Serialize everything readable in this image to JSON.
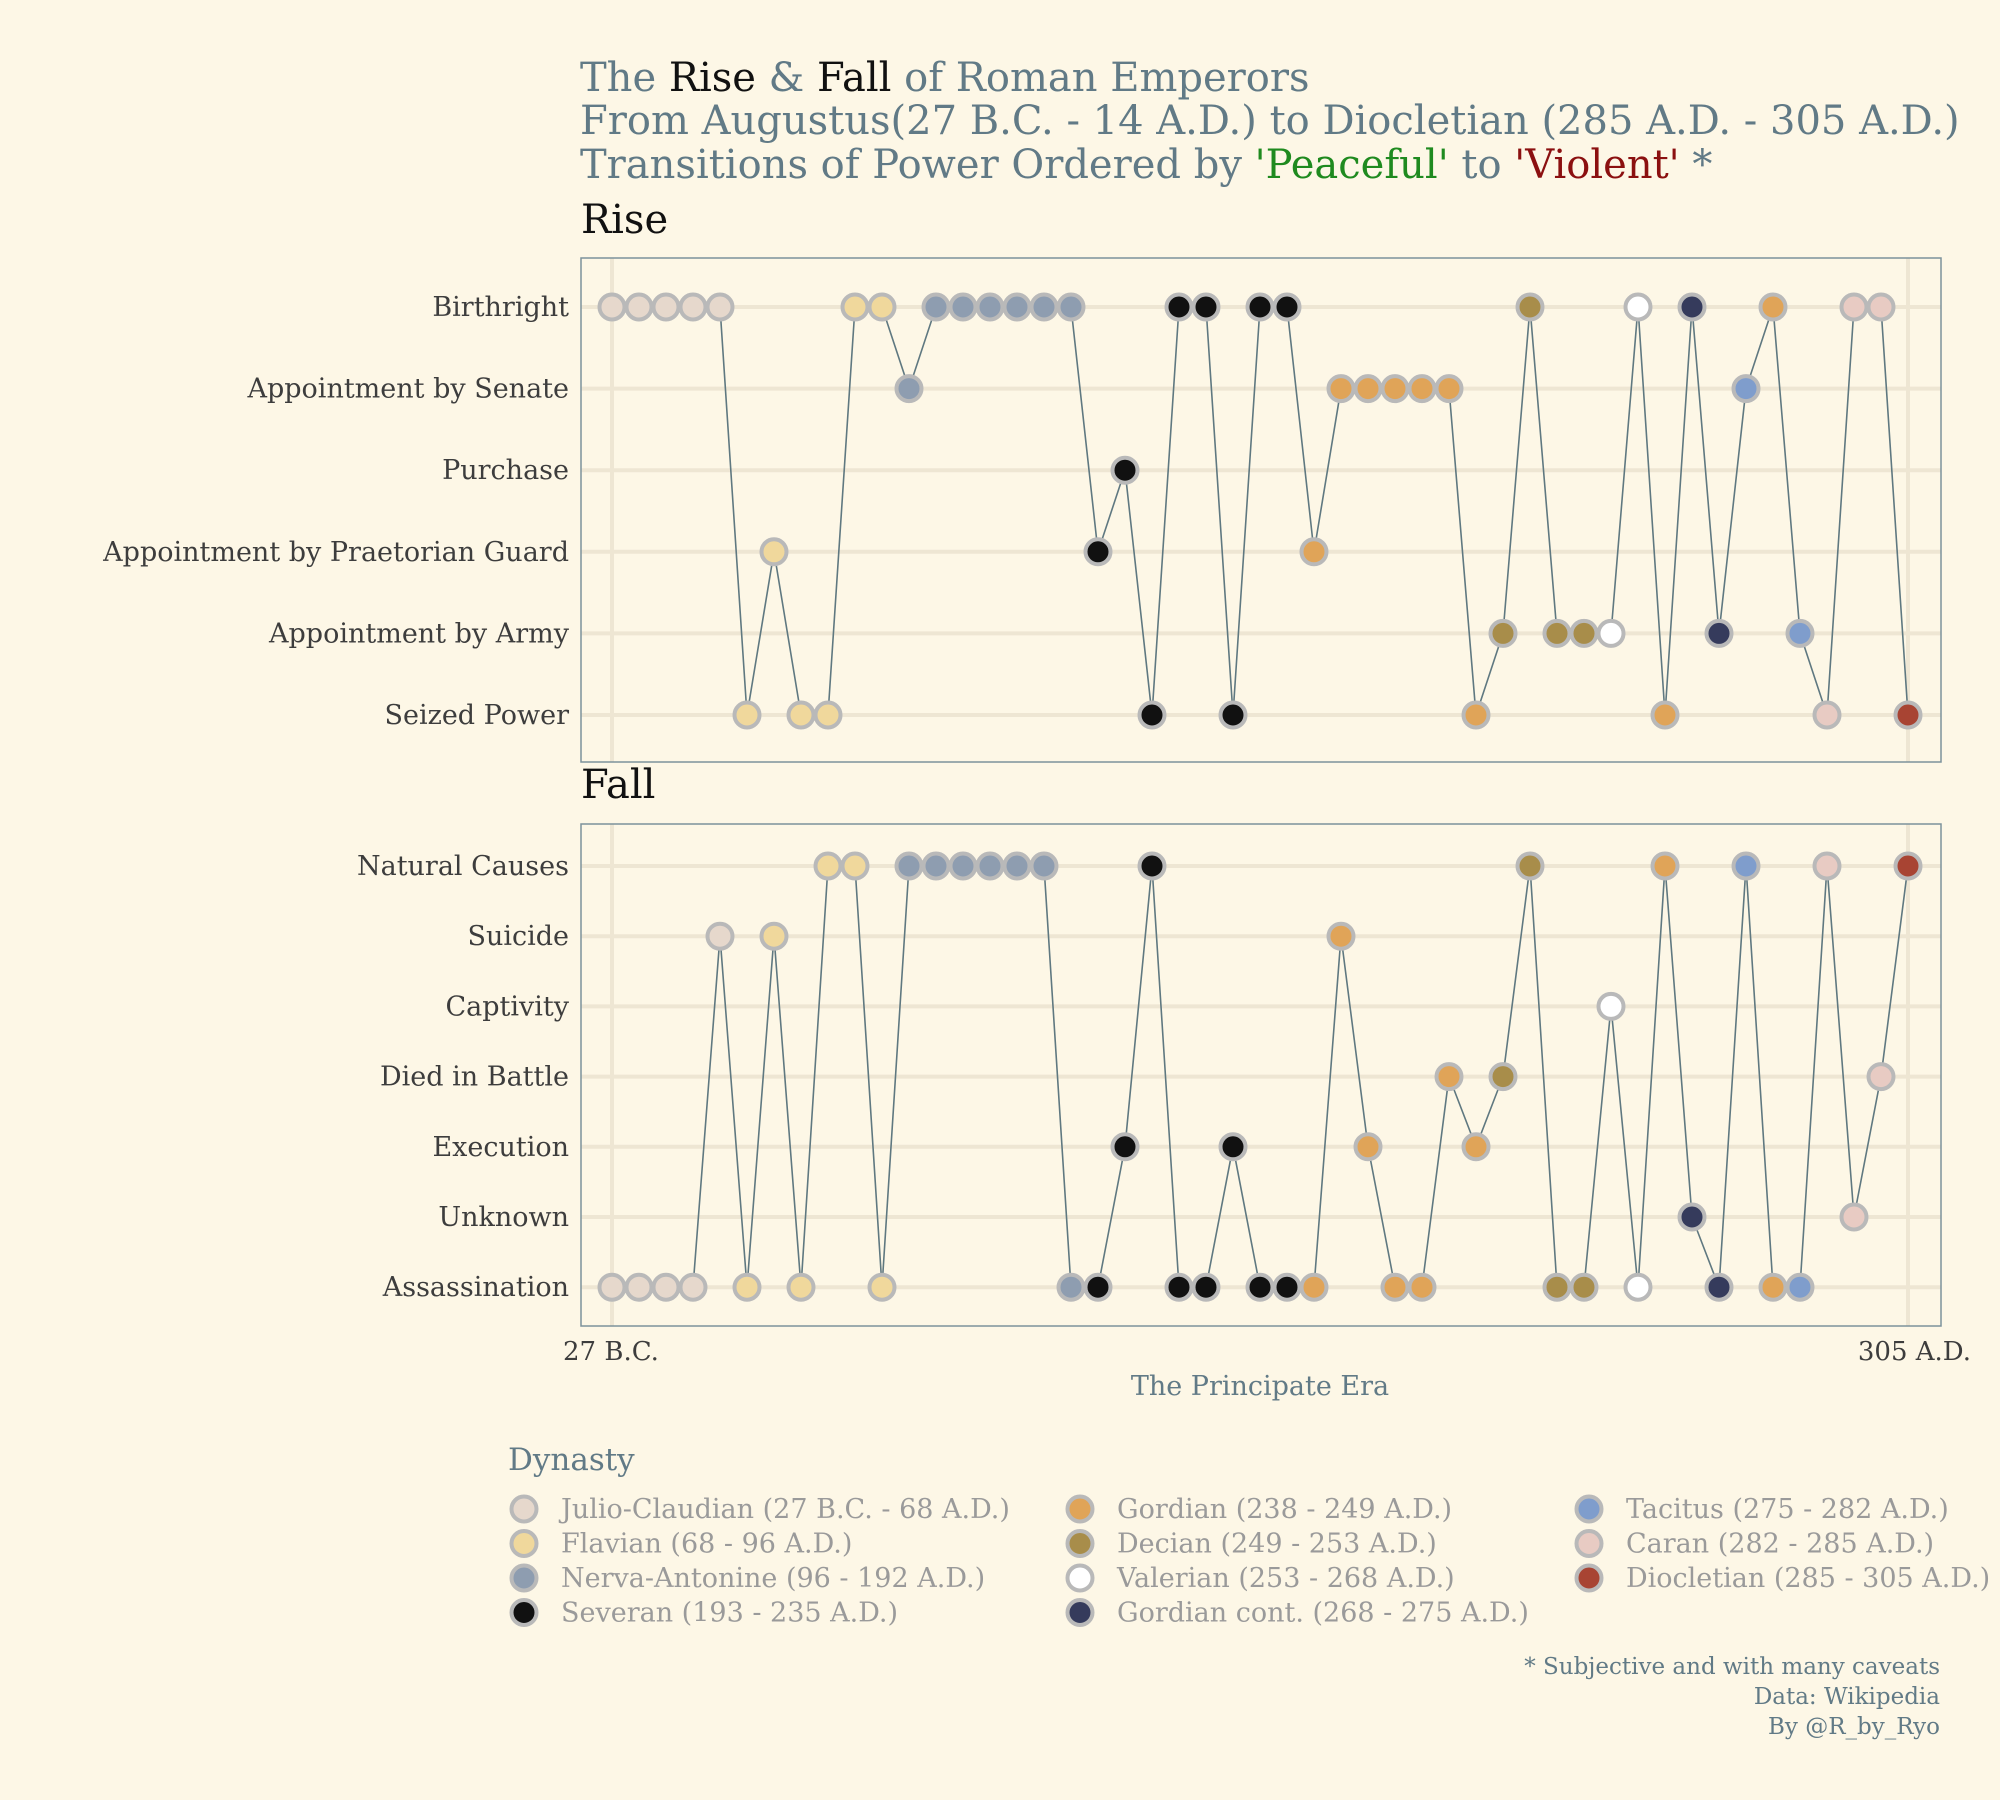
{
  "chart_data": {
    "type": "line",
    "title": {
      "line1": [
        {
          "text": "The ",
          "emph": false
        },
        {
          "text": "Rise",
          "emph": true
        },
        {
          "text": " & ",
          "emph": false
        },
        {
          "text": "Fall",
          "emph": true
        },
        {
          "text": " of Roman Emperors",
          "emph": false
        }
      ],
      "line2": "From Augustus(27 B.C. - 14 A.D.) to Diocletian (285 A.D. - 305 A.D.)",
      "line3": [
        {
          "text": "Transitions of Power Ordered by ",
          "color": "#617a86"
        },
        {
          "text": "'Peaceful'",
          "color": "#1f8a1f"
        },
        {
          "text": " to ",
          "color": "#617a86"
        },
        {
          "text": "'Violent'",
          "color": "#8b1010"
        },
        {
          "text": " *",
          "color": "#617a86"
        }
      ]
    },
    "xlabel": "The Principate Era",
    "x_ticks": [
      "27 B.C.",
      "305 A.D."
    ],
    "x_range": [
      1,
      49
    ],
    "palette": {
      "line": "#5f7880",
      "point_stroke": "#b9b9b9",
      "grid": "#eee6d3",
      "panel_border": "#7d929b"
    },
    "dynasties": [
      {
        "name": "Julio-Claudian (27 B.C. - 68 A.D.)",
        "color": "#e6d8cc"
      },
      {
        "name": "Flavian (68 - 96 A.D.)",
        "color": "#f0d89c"
      },
      {
        "name": "Nerva-Antonine (96 - 192 A.D.)",
        "color": "#8e9db0"
      },
      {
        "name": "Severan (193 - 235 A.D.)",
        "color": "#111111"
      },
      {
        "name": "Gordian (238 - 249 A.D.)",
        "color": "#e0a458"
      },
      {
        "name": "Decian (249 - 253 A.D.)",
        "color": "#a88d4a"
      },
      {
        "name": "Valerian (253 - 268 A.D.)",
        "color": "#ffffff"
      },
      {
        "name": "Gordian cont. (268 - 275 A.D.)",
        "color": "#353b5c"
      },
      {
        "name": "Tacitus (275 - 282 A.D.)",
        "color": "#7f9dcc"
      },
      {
        "name": "Caran (282 - 285 A.D.)",
        "color": "#e8cbc3"
      },
      {
        "name": "Diocletian (285 - 305 A.D.)",
        "color": "#a84433"
      }
    ],
    "panels": [
      {
        "title": "Rise",
        "categories": [
          "Birthright",
          "Appointment by Senate",
          "Purchase",
          "Appointment by Praetorian Guard",
          "Appointment by Army",
          "Seized Power"
        ],
        "points": [
          {
            "x": 1,
            "cat": 0,
            "d": 0
          },
          {
            "x": 2,
            "cat": 0,
            "d": 0
          },
          {
            "x": 3,
            "cat": 0,
            "d": 0
          },
          {
            "x": 4,
            "cat": 0,
            "d": 0
          },
          {
            "x": 5,
            "cat": 0,
            "d": 0
          },
          {
            "x": 6,
            "cat": 5,
            "d": 1
          },
          {
            "x": 7,
            "cat": 3,
            "d": 1
          },
          {
            "x": 8,
            "cat": 5,
            "d": 1
          },
          {
            "x": 9,
            "cat": 5,
            "d": 1
          },
          {
            "x": 10,
            "cat": 0,
            "d": 1
          },
          {
            "x": 11,
            "cat": 0,
            "d": 1
          },
          {
            "x": 12,
            "cat": 1,
            "d": 2
          },
          {
            "x": 13,
            "cat": 0,
            "d": 2
          },
          {
            "x": 14,
            "cat": 0,
            "d": 2
          },
          {
            "x": 15,
            "cat": 0,
            "d": 2
          },
          {
            "x": 16,
            "cat": 0,
            "d": 2
          },
          {
            "x": 17,
            "cat": 0,
            "d": 2
          },
          {
            "x": 18,
            "cat": 0,
            "d": 2
          },
          {
            "x": 19,
            "cat": 3,
            "d": 3
          },
          {
            "x": 20,
            "cat": 2,
            "d": 3
          },
          {
            "x": 21,
            "cat": 5,
            "d": 3
          },
          {
            "x": 22,
            "cat": 0,
            "d": 3
          },
          {
            "x": 23,
            "cat": 0,
            "d": 3
          },
          {
            "x": 24,
            "cat": 5,
            "d": 3
          },
          {
            "x": 25,
            "cat": 0,
            "d": 3
          },
          {
            "x": 26,
            "cat": 0,
            "d": 3
          },
          {
            "x": 27,
            "cat": 3,
            "d": 4
          },
          {
            "x": 28,
            "cat": 1,
            "d": 4
          },
          {
            "x": 29,
            "cat": 1,
            "d": 4
          },
          {
            "x": 30,
            "cat": 1,
            "d": 4
          },
          {
            "x": 31,
            "cat": 1,
            "d": 4
          },
          {
            "x": 32,
            "cat": 1,
            "d": 4
          },
          {
            "x": 33,
            "cat": 5,
            "d": 4
          },
          {
            "x": 34,
            "cat": 4,
            "d": 5
          },
          {
            "x": 35,
            "cat": 0,
            "d": 5
          },
          {
            "x": 36,
            "cat": 4,
            "d": 5
          },
          {
            "x": 37,
            "cat": 4,
            "d": 5
          },
          {
            "x": 38,
            "cat": 4,
            "d": 6
          },
          {
            "x": 39,
            "cat": 0,
            "d": 6
          },
          {
            "x": 40,
            "cat": 5,
            "d": 4
          },
          {
            "x": 41,
            "cat": 0,
            "d": 7
          },
          {
            "x": 42,
            "cat": 4,
            "d": 7
          },
          {
            "x": 43,
            "cat": 1,
            "d": 8
          },
          {
            "x": 44,
            "cat": 0,
            "d": 4
          },
          {
            "x": 45,
            "cat": 4,
            "d": 8
          },
          {
            "x": 46,
            "cat": 5,
            "d": 9
          },
          {
            "x": 47,
            "cat": 0,
            "d": 9
          },
          {
            "x": 48,
            "cat": 0,
            "d": 9
          },
          {
            "x": 49,
            "cat": 5,
            "d": 10
          }
        ]
      },
      {
        "title": "Fall",
        "categories": [
          "Natural Causes",
          "Suicide",
          "Captivity",
          "Died in Battle",
          "Execution",
          "Unknown",
          "Assassination"
        ],
        "points": [
          {
            "x": 1,
            "cat": 6,
            "d": 0
          },
          {
            "x": 2,
            "cat": 6,
            "d": 0
          },
          {
            "x": 3,
            "cat": 6,
            "d": 0
          },
          {
            "x": 4,
            "cat": 6,
            "d": 0
          },
          {
            "x": 5,
            "cat": 1,
            "d": 0
          },
          {
            "x": 6,
            "cat": 6,
            "d": 1
          },
          {
            "x": 7,
            "cat": 1,
            "d": 1
          },
          {
            "x": 8,
            "cat": 6,
            "d": 1
          },
          {
            "x": 9,
            "cat": 0,
            "d": 1
          },
          {
            "x": 10,
            "cat": 0,
            "d": 1
          },
          {
            "x": 11,
            "cat": 6,
            "d": 1
          },
          {
            "x": 12,
            "cat": 0,
            "d": 2
          },
          {
            "x": 13,
            "cat": 0,
            "d": 2
          },
          {
            "x": 14,
            "cat": 0,
            "d": 2
          },
          {
            "x": 15,
            "cat": 0,
            "d": 2
          },
          {
            "x": 16,
            "cat": 0,
            "d": 2
          },
          {
            "x": 17,
            "cat": 0,
            "d": 2
          },
          {
            "x": 18,
            "cat": 6,
            "d": 2
          },
          {
            "x": 19,
            "cat": 6,
            "d": 3
          },
          {
            "x": 20,
            "cat": 4,
            "d": 3
          },
          {
            "x": 21,
            "cat": 0,
            "d": 3
          },
          {
            "x": 22,
            "cat": 6,
            "d": 3
          },
          {
            "x": 23,
            "cat": 6,
            "d": 3
          },
          {
            "x": 24,
            "cat": 4,
            "d": 3
          },
          {
            "x": 25,
            "cat": 6,
            "d": 3
          },
          {
            "x": 26,
            "cat": 6,
            "d": 3
          },
          {
            "x": 27,
            "cat": 6,
            "d": 4
          },
          {
            "x": 28,
            "cat": 1,
            "d": 4
          },
          {
            "x": 29,
            "cat": 4,
            "d": 4
          },
          {
            "x": 30,
            "cat": 6,
            "d": 4
          },
          {
            "x": 31,
            "cat": 6,
            "d": 4
          },
          {
            "x": 32,
            "cat": 3,
            "d": 4
          },
          {
            "x": 33,
            "cat": 4,
            "d": 4
          },
          {
            "x": 34,
            "cat": 3,
            "d": 5
          },
          {
            "x": 35,
            "cat": 0,
            "d": 5
          },
          {
            "x": 36,
            "cat": 6,
            "d": 5
          },
          {
            "x": 37,
            "cat": 6,
            "d": 5
          },
          {
            "x": 38,
            "cat": 2,
            "d": 6
          },
          {
            "x": 39,
            "cat": 6,
            "d": 6
          },
          {
            "x": 40,
            "cat": 0,
            "d": 4
          },
          {
            "x": 41,
            "cat": 5,
            "d": 7
          },
          {
            "x": 42,
            "cat": 6,
            "d": 7
          },
          {
            "x": 43,
            "cat": 0,
            "d": 8
          },
          {
            "x": 44,
            "cat": 6,
            "d": 4
          },
          {
            "x": 45,
            "cat": 6,
            "d": 8
          },
          {
            "x": 46,
            "cat": 0,
            "d": 9
          },
          {
            "x": 47,
            "cat": 5,
            "d": 9
          },
          {
            "x": 48,
            "cat": 3,
            "d": 9
          },
          {
            "x": 49,
            "cat": 0,
            "d": 10
          }
        ]
      }
    ],
    "legend": {
      "title": "Dynasty",
      "placement": "bottom",
      "columns": 3
    },
    "caption": [
      "* Subjective and with many caveats",
      "Data: Wikipedia",
      "By @R_by_Ryo"
    ]
  }
}
